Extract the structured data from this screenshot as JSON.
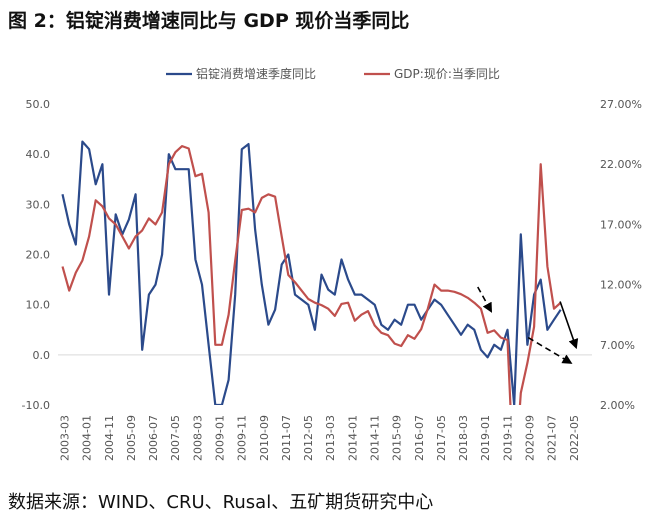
{
  "title": "图 2：铝锭消费增速同比与 GDP 现价当季同比",
  "source": "数据来源：WIND、CRU、Rusal、五矿期货研究中心",
  "chart_data": {
    "type": "line",
    "x_tick_labels": [
      "2003-03",
      "2004-01",
      "2004-11",
      "2005-09",
      "2006-07",
      "2007-05",
      "2008-03",
      "2009-01",
      "2009-11",
      "2010-09",
      "2011-07",
      "2012-05",
      "2013-03",
      "2014-01",
      "2014-11",
      "2015-09",
      "2016-07",
      "2017-05",
      "2018-03",
      "2019-01",
      "2019-11",
      "2020-09",
      "2021-07",
      "2022-05"
    ],
    "y_left": {
      "ylim": [
        -10,
        50
      ],
      "ticks": [
        "-10.0",
        "0.0",
        "10.0",
        "20.0",
        "30.0",
        "40.0",
        "50.0"
      ]
    },
    "y_right": {
      "ylim": [
        2,
        27
      ],
      "ticks": [
        "2.00%",
        "7.00%",
        "12.00%",
        "17.00%",
        "22.00%",
        "27.00%"
      ]
    },
    "legend": {
      "position": "top"
    },
    "series": [
      {
        "name": "铝锭消费增速季度同比",
        "axis": "left",
        "color": "#2b4a8b",
        "x": [
          2003.17,
          2003.42,
          2003.67,
          2003.92,
          2004.17,
          2004.42,
          2004.67,
          2004.92,
          2005.17,
          2005.42,
          2005.67,
          2005.92,
          2006.17,
          2006.42,
          2006.67,
          2006.92,
          2007.17,
          2007.42,
          2007.67,
          2007.92,
          2008.17,
          2008.42,
          2008.67,
          2008.92,
          2009.17,
          2009.42,
          2009.67,
          2009.92,
          2010.17,
          2010.42,
          2010.67,
          2010.92,
          2011.17,
          2011.42,
          2011.67,
          2011.92,
          2012.17,
          2012.42,
          2012.67,
          2012.92,
          2013.17,
          2013.42,
          2013.67,
          2013.92,
          2014.17,
          2014.42,
          2014.67,
          2014.92,
          2015.17,
          2015.42,
          2015.67,
          2015.92,
          2016.17,
          2016.42,
          2016.67,
          2016.92,
          2017.17,
          2017.42,
          2017.67,
          2017.92,
          2018.17,
          2018.42,
          2018.67,
          2018.92,
          2019.17,
          2019.42,
          2019.67,
          2019.92,
          2020.17,
          2020.42,
          2020.67,
          2020.92,
          2021.17,
          2021.42,
          2021.67,
          2021.92
        ],
        "values": [
          32,
          26,
          22,
          42.5,
          41,
          34,
          38,
          12,
          28,
          24,
          27,
          32,
          1,
          12,
          14,
          20,
          40,
          37,
          37,
          37,
          19,
          14,
          2,
          -10,
          -10,
          -5,
          12,
          41,
          42,
          25,
          14,
          6,
          9,
          18,
          20,
          12,
          11,
          10,
          5,
          16,
          13,
          12,
          19,
          15,
          12,
          12,
          11,
          10,
          6,
          5,
          7,
          6,
          10,
          10,
          7,
          9,
          11,
          10,
          8,
          6,
          4,
          6,
          5,
          1,
          -0.5,
          2,
          1,
          5,
          -10,
          24,
          2,
          12,
          15,
          5,
          7,
          9
        ]
      },
      {
        "name": "GDP:现价:当季同比",
        "axis": "right",
        "color": "#c0504d",
        "x": [
          2003.17,
          2003.42,
          2003.67,
          2003.92,
          2004.17,
          2004.42,
          2004.67,
          2004.92,
          2005.17,
          2005.42,
          2005.67,
          2005.92,
          2006.17,
          2006.42,
          2006.67,
          2006.92,
          2007.17,
          2007.42,
          2007.67,
          2007.92,
          2008.17,
          2008.42,
          2008.67,
          2008.92,
          2009.17,
          2009.42,
          2009.67,
          2009.92,
          2010.17,
          2010.42,
          2010.67,
          2010.92,
          2011.17,
          2011.42,
          2011.67,
          2011.92,
          2012.17,
          2012.42,
          2012.67,
          2012.92,
          2013.17,
          2013.42,
          2013.67,
          2013.92,
          2014.17,
          2014.42,
          2014.67,
          2014.92,
          2015.17,
          2015.42,
          2015.67,
          2015.92,
          2016.17,
          2016.42,
          2016.67,
          2016.92,
          2017.17,
          2017.42,
          2017.67,
          2017.92,
          2018.17,
          2018.42,
          2018.67,
          2018.92,
          2019.17,
          2019.42,
          2019.67,
          2019.92,
          2020.17,
          2020.42,
          2020.67,
          2020.92,
          2021.17,
          2021.42,
          2021.67,
          2021.92
        ],
        "values": [
          13.5,
          11.5,
          13,
          14,
          16,
          19,
          18.5,
          17.5,
          17,
          16,
          15,
          16,
          16.5,
          17.5,
          17,
          18,
          22,
          23,
          23.5,
          23.3,
          21,
          21.2,
          18,
          7,
          7,
          9.5,
          14,
          18.2,
          18.3,
          18,
          19.2,
          19.5,
          19.3,
          16,
          12.8,
          12.2,
          11.5,
          10.8,
          10.5,
          10.3,
          10,
          9.4,
          10.4,
          10.5,
          9,
          9.5,
          9.8,
          8.6,
          8,
          7.8,
          7.1,
          6.9,
          7.8,
          7.5,
          8.3,
          10,
          12,
          11.5,
          11.5,
          11.4,
          11.2,
          10.9,
          10.5,
          10,
          8,
          8.2,
          7.6,
          7.4,
          -5,
          3,
          5.5,
          8.5,
          22,
          13.5,
          10,
          10.5
        ]
      }
    ],
    "annotations": [
      {
        "type": "arrow",
        "style": "dashed",
        "from": [
          2018.8,
          11.8
        ],
        "to": [
          2019.3,
          9.8
        ],
        "axis": "right"
      },
      {
        "type": "arrow",
        "style": "dashed",
        "from": [
          2020.7,
          7.6
        ],
        "to": [
          2022.3,
          5.5
        ],
        "axis": "right"
      },
      {
        "type": "arrow",
        "style": "solid",
        "from": [
          2021.9,
          10.6
        ],
        "to": [
          2022.5,
          6.8
        ],
        "axis": "right"
      }
    ]
  }
}
